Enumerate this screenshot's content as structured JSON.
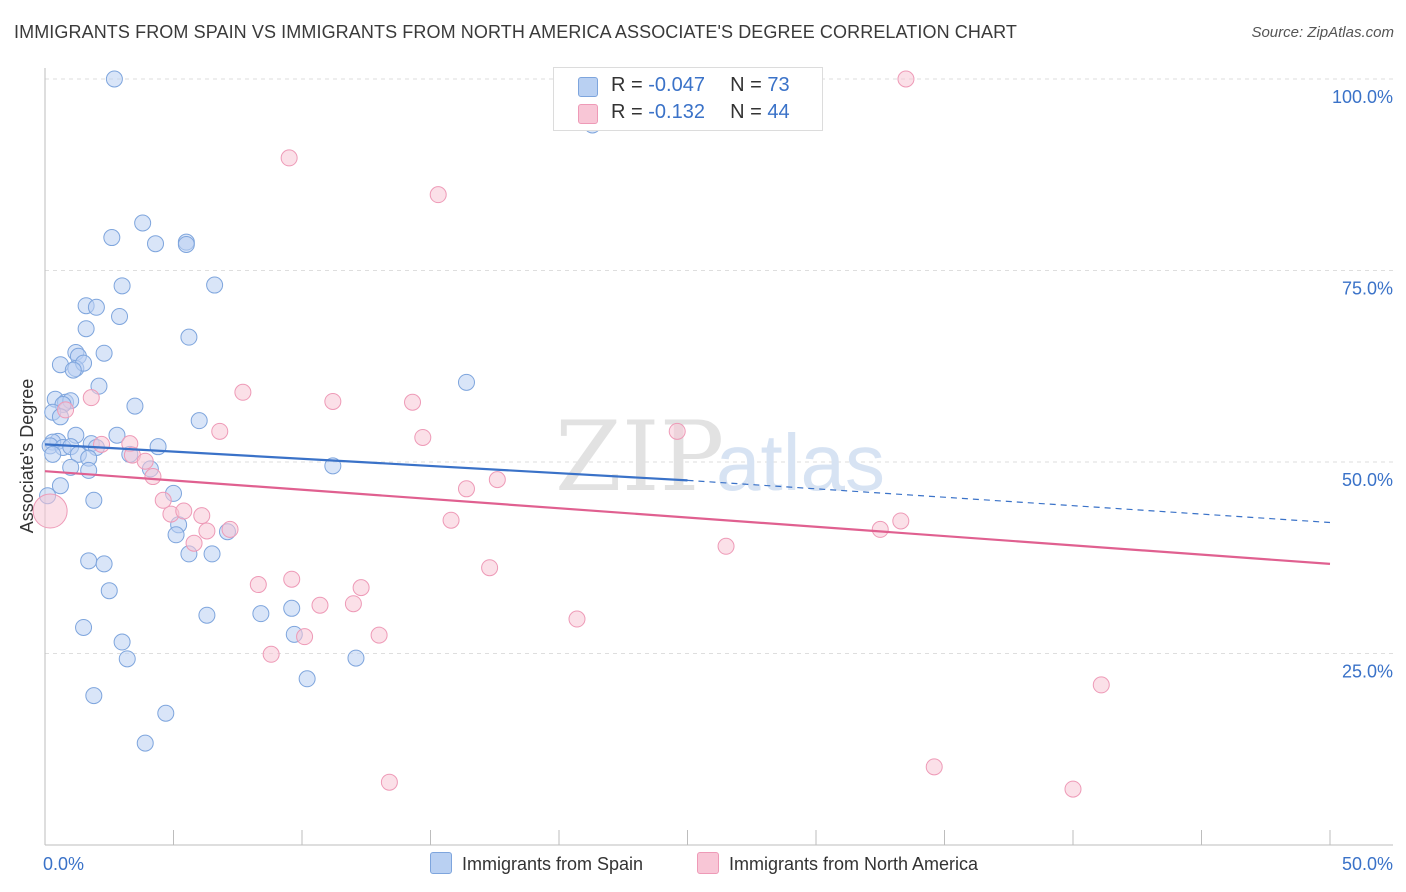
{
  "title": "IMMIGRANTS FROM SPAIN VS IMMIGRANTS FROM NORTH AMERICA ASSOCIATE'S DEGREE CORRELATION CHART",
  "source": "Source: ZipAtlas.com",
  "watermark": {
    "zip": "ZIP",
    "atlas": "atlas"
  },
  "legend": {
    "rows": [
      {
        "r_label": "R =",
        "r_value": "-0.047",
        "n_label": "N =",
        "n_value": "73",
        "fill": "#b9d0f2",
        "stroke": "#7ea5dd"
      },
      {
        "r_label": "R =",
        "r_value": "-0.132",
        "n_label": "N =",
        "n_value": "44",
        "fill": "#f8c6d6",
        "stroke": "#ee9ab7"
      }
    ]
  },
  "bottom_legend": [
    {
      "label": "Immigrants from Spain",
      "fill": "#b9d0f2",
      "stroke": "#7ea5dd"
    },
    {
      "label": "Immigrants from North America",
      "fill": "#f8c6d6",
      "stroke": "#ee9ab7"
    }
  ],
  "chart_data": {
    "type": "scatter",
    "title": "IMMIGRANTS FROM SPAIN VS IMMIGRANTS FROM NORTH AMERICA ASSOCIATE'S DEGREE CORRELATION CHART",
    "xlabel": "",
    "ylabel": "Associate's Degree",
    "xlim": [
      0,
      50
    ],
    "ylim": [
      0,
      100
    ],
    "x_tick_labels": {
      "left": "0.0%",
      "right": "50.0%"
    },
    "y_ticks": [
      {
        "value": 100,
        "label": "100.0%"
      },
      {
        "value": 75,
        "label": "75.0%"
      },
      {
        "value": 50,
        "label": "50.0%"
      },
      {
        "value": 25,
        "label": "25.0%"
      }
    ],
    "grid": true,
    "series": [
      {
        "name": "Immigrants from Spain",
        "color": "#3a72c8",
        "fill": "#b9d0f2",
        "trend": {
          "x_start": 0,
          "y_start": 52.3,
          "x_solid_end": 25,
          "y_solid_end": 47.6,
          "x_end": 50,
          "y_end": 42.1
        },
        "points": [
          [
            2.7,
            100
          ],
          [
            3.8,
            81.2
          ],
          [
            2.6,
            79.3
          ],
          [
            4.3,
            78.5
          ],
          [
            5.5,
            78.7
          ],
          [
            5.5,
            78.4
          ],
          [
            3.0,
            73.0
          ],
          [
            6.6,
            73.1
          ],
          [
            1.6,
            70.4
          ],
          [
            2.0,
            70.2
          ],
          [
            2.9,
            69.0
          ],
          [
            1.6,
            67.4
          ],
          [
            5.6,
            66.3
          ],
          [
            1.2,
            64.3
          ],
          [
            2.3,
            64.2
          ],
          [
            1.3,
            63.8
          ],
          [
            0.6,
            62.7
          ],
          [
            1.2,
            62.2
          ],
          [
            1.5,
            62.9
          ],
          [
            1.1,
            62.0
          ],
          [
            2.1,
            59.9
          ],
          [
            16.4,
            60.4
          ],
          [
            0.4,
            58.2
          ],
          [
            0.8,
            57.8
          ],
          [
            1.0,
            58.0
          ],
          [
            0.7,
            57.5
          ],
          [
            3.5,
            57.3
          ],
          [
            0.3,
            56.5
          ],
          [
            0.6,
            55.9
          ],
          [
            6.0,
            55.4
          ],
          [
            1.2,
            53.5
          ],
          [
            2.8,
            53.5
          ],
          [
            0.5,
            52.7
          ],
          [
            0.3,
            52.6
          ],
          [
            1.8,
            52.4
          ],
          [
            0.2,
            52.1
          ],
          [
            0.7,
            51.9
          ],
          [
            1.0,
            52.0
          ],
          [
            2.0,
            51.9
          ],
          [
            4.4,
            52.0
          ],
          [
            0.3,
            51.0
          ],
          [
            1.3,
            51.0
          ],
          [
            1.7,
            50.5
          ],
          [
            3.3,
            51.0
          ],
          [
            11.2,
            49.5
          ],
          [
            1.0,
            49.3
          ],
          [
            1.7,
            48.9
          ],
          [
            4.1,
            49.1
          ],
          [
            0.6,
            46.9
          ],
          [
            5.0,
            45.9
          ],
          [
            0.1,
            45.6
          ],
          [
            1.9,
            45.0
          ],
          [
            5.2,
            41.8
          ],
          [
            7.1,
            40.9
          ],
          [
            5.1,
            40.5
          ],
          [
            5.6,
            38.0
          ],
          [
            6.5,
            38.0
          ],
          [
            1.7,
            37.1
          ],
          [
            2.3,
            36.7
          ],
          [
            2.5,
            33.2
          ],
          [
            9.6,
            30.9
          ],
          [
            6.3,
            30.0
          ],
          [
            8.4,
            30.2
          ],
          [
            1.5,
            28.4
          ],
          [
            9.7,
            27.5
          ],
          [
            3.0,
            26.5
          ],
          [
            3.2,
            24.3
          ],
          [
            12.1,
            24.4
          ],
          [
            10.2,
            21.7
          ],
          [
            1.9,
            19.5
          ],
          [
            4.7,
            17.2
          ],
          [
            3.9,
            13.3
          ],
          [
            21.3,
            94.0
          ]
        ]
      },
      {
        "name": "Immigrants from North America",
        "color": "#e06090",
        "fill": "#f8c6d6",
        "trend": {
          "x_start": 0,
          "y_start": 48.8,
          "x_end": 50,
          "y_end": 36.7
        },
        "points": [
          [
            33.5,
            100
          ],
          [
            9.5,
            89.7
          ],
          [
            15.3,
            84.9
          ],
          [
            7.7,
            59.1
          ],
          [
            11.2,
            57.9
          ],
          [
            14.3,
            57.8
          ],
          [
            1.8,
            58.4
          ],
          [
            0.8,
            56.8
          ],
          [
            24.6,
            54.0
          ],
          [
            6.8,
            54.0
          ],
          [
            14.7,
            53.2
          ],
          [
            3.3,
            52.4
          ],
          [
            2.2,
            52.3
          ],
          [
            3.4,
            50.9
          ],
          [
            3.9,
            50.1
          ],
          [
            4.2,
            48.1
          ],
          [
            17.6,
            47.7
          ],
          [
            16.4,
            46.5
          ],
          [
            0.2,
            43.6
          ],
          [
            4.9,
            43.2
          ],
          [
            5.4,
            43.6
          ],
          [
            6.1,
            43.0
          ],
          [
            15.8,
            42.4
          ],
          [
            33.3,
            42.3
          ],
          [
            32.5,
            41.2
          ],
          [
            7.2,
            41.2
          ],
          [
            26.5,
            39.0
          ],
          [
            5.8,
            39.4
          ],
          [
            17.3,
            36.2
          ],
          [
            9.6,
            34.7
          ],
          [
            8.3,
            34.0
          ],
          [
            12.3,
            33.6
          ],
          [
            12.0,
            31.5
          ],
          [
            10.7,
            31.3
          ],
          [
            20.7,
            29.5
          ],
          [
            10.1,
            27.2
          ],
          [
            13.0,
            27.4
          ],
          [
            8.8,
            24.9
          ],
          [
            41.1,
            20.9
          ],
          [
            34.6,
            10.2
          ],
          [
            40.0,
            7.3
          ],
          [
            13.4,
            8.2
          ],
          [
            6.3,
            41.0
          ],
          [
            4.6,
            45.0
          ]
        ]
      }
    ]
  }
}
